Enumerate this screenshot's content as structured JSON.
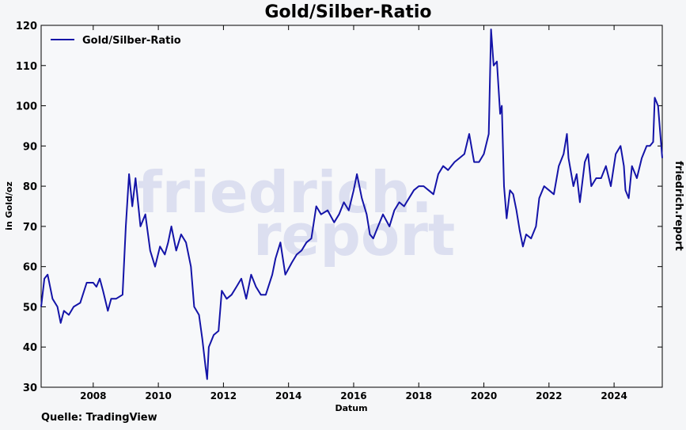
{
  "chart_data": {
    "type": "line",
    "title": "Gold/Silber-Ratio",
    "xlabel": "Datum",
    "ylabel": "in Gold/oz",
    "source": "Quelle: TradingView",
    "side_label": "friedrich.report",
    "watermark": [
      "friedrich.",
      "report"
    ],
    "legend": "upper left",
    "xlim": [
      2006.4,
      2025.48
    ],
    "ylim": [
      30,
      120
    ],
    "xticks": [
      2008,
      2010,
      2012,
      2014,
      2016,
      2018,
      2020,
      2022,
      2024
    ],
    "yticks": [
      30,
      40,
      50,
      60,
      70,
      80,
      90,
      100,
      110,
      120
    ],
    "series": [
      {
        "name": "Gold/Silber-Ratio",
        "color": "#1414a8",
        "x": [
          2006.4,
          2006.5,
          2006.6,
          2006.75,
          2006.9,
          2007.0,
          2007.1,
          2007.25,
          2007.4,
          2007.6,
          2007.8,
          2008.0,
          2008.1,
          2008.2,
          2008.3,
          2008.45,
          2008.55,
          2008.7,
          2008.9,
          2009.0,
          2009.1,
          2009.2,
          2009.3,
          2009.45,
          2009.6,
          2009.75,
          2009.9,
          2010.05,
          2010.2,
          2010.3,
          2010.4,
          2010.55,
          2010.7,
          2010.85,
          2011.0,
          2011.1,
          2011.25,
          2011.35,
          2011.45,
          2011.5,
          2011.55,
          2011.7,
          2011.85,
          2011.95,
          2012.1,
          2012.25,
          2012.4,
          2012.55,
          2012.7,
          2012.85,
          2013.0,
          2013.15,
          2013.3,
          2013.5,
          2013.6,
          2013.75,
          2013.9,
          2014.1,
          2014.25,
          2014.4,
          2014.55,
          2014.7,
          2014.85,
          2015.0,
          2015.2,
          2015.4,
          2015.55,
          2015.7,
          2015.85,
          2016.0,
          2016.1,
          2016.25,
          2016.4,
          2016.5,
          2016.6,
          2016.75,
          2016.9,
          2017.1,
          2017.25,
          2017.4,
          2017.55,
          2017.7,
          2017.85,
          2018.0,
          2018.15,
          2018.3,
          2018.45,
          2018.6,
          2018.75,
          2018.9,
          2019.1,
          2019.25,
          2019.4,
          2019.55,
          2019.7,
          2019.85,
          2020.0,
          2020.15,
          2020.22,
          2020.3,
          2020.4,
          2020.5,
          2020.55,
          2020.62,
          2020.7,
          2020.8,
          2020.9,
          2021.0,
          2021.1,
          2021.2,
          2021.3,
          2021.45,
          2021.6,
          2021.7,
          2021.85,
          2022.0,
          2022.15,
          2022.3,
          2022.45,
          2022.55,
          2022.6,
          2022.75,
          2022.85,
          2022.95,
          2023.1,
          2023.2,
          2023.3,
          2023.45,
          2023.6,
          2023.75,
          2023.9,
          2024.05,
          2024.2,
          2024.3,
          2024.35,
          2024.45,
          2024.55,
          2024.7,
          2024.85,
          2025.0,
          2025.1,
          2025.2,
          2025.25,
          2025.35,
          2025.42,
          2025.48
        ],
        "values": [
          50,
          57,
          58,
          52,
          50,
          46,
          49,
          48,
          50,
          51,
          56,
          56,
          55,
          57,
          54,
          49,
          52,
          52,
          53,
          70,
          83,
          75,
          82,
          70,
          73,
          64,
          60,
          65,
          63,
          66,
          70,
          64,
          68,
          66,
          60,
          50,
          48,
          42,
          35,
          32,
          40,
          43,
          44,
          54,
          52,
          53,
          55,
          57,
          52,
          58,
          55,
          53,
          53,
          58,
          62,
          66,
          58,
          61,
          63,
          64,
          66,
          67,
          75,
          73,
          74,
          71,
          73,
          76,
          74,
          79,
          83,
          77,
          73,
          68,
          67,
          70,
          73,
          70,
          74,
          76,
          75,
          77,
          79,
          80,
          80,
          79,
          78,
          83,
          85,
          84,
          86,
          87,
          88,
          93,
          86,
          86,
          88,
          93,
          119,
          110,
          111,
          98,
          100,
          80,
          72,
          79,
          78,
          74,
          69,
          65,
          68,
          67,
          70,
          77,
          80,
          79,
          78,
          85,
          88,
          93,
          87,
          80,
          83,
          76,
          86,
          88,
          80,
          82,
          82,
          85,
          80,
          88,
          90,
          85,
          79,
          77,
          85,
          82,
          87,
          90,
          90,
          91,
          102,
          100,
          93,
          87
        ]
      }
    ]
  }
}
